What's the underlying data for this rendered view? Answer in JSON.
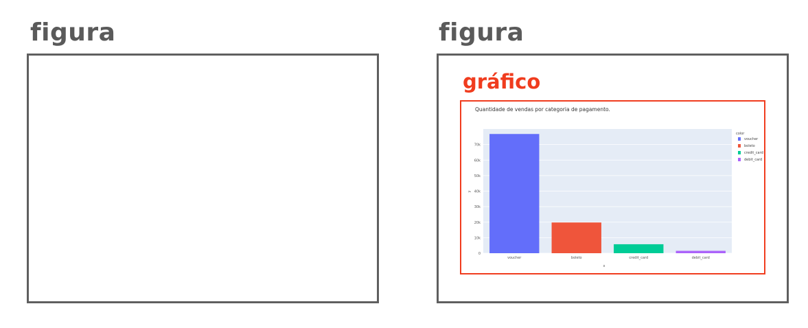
{
  "panels": {
    "left_label": "figura",
    "right_label": "figura",
    "chart_label": "gráfico"
  },
  "chart_data": {
    "type": "bar",
    "title": "Quantidade de vendas por categoria de pagamento.",
    "xlabel": "x",
    "ylabel": "y",
    "categories": [
      "voucher",
      "boleto",
      "credit_card",
      "debit_card"
    ],
    "values": [
      76795,
      19784,
      5775,
      1529
    ],
    "colors": [
      "#636efa",
      "#ef553b",
      "#00cc96",
      "#ab63fa"
    ],
    "ylim": [
      0,
      80000
    ],
    "yticks": [
      0,
      10000,
      20000,
      30000,
      40000,
      50000,
      60000,
      70000
    ],
    "ytick_labels": [
      "0",
      "10k",
      "20k",
      "30k",
      "40k",
      "50k",
      "60k",
      "70k"
    ],
    "legend": {
      "title": "color",
      "entries": [
        "voucher",
        "boleto",
        "credit_card",
        "debit_card"
      ],
      "placement": "right"
    },
    "grid": true,
    "plot_background": "#e5ecf6"
  }
}
